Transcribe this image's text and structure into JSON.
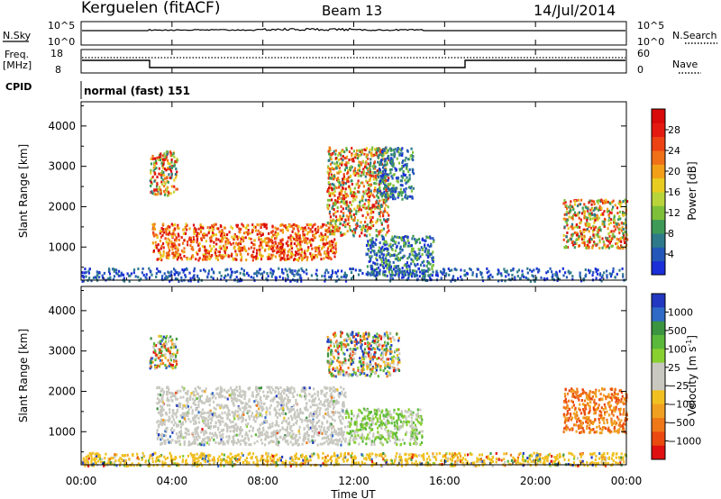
{
  "header": {
    "station": "Kerguelen (fitACF)",
    "beam": "Beam 13",
    "date": "14/Jul/2014"
  },
  "nsky_panel": {
    "left_label": "N.Sky",
    "left_ticks": [
      "10^5",
      "10^0"
    ],
    "right_ticks": [
      "10^5",
      "10^0"
    ],
    "right_label": "N.Search"
  },
  "freq_panel": {
    "left_label_1": "Freq.",
    "left_label_2": "[MHz]",
    "left_ticks": [
      "18",
      "8"
    ],
    "right_ticks": [
      "60",
      "0"
    ],
    "right_label": "Nave"
  },
  "cpid_panel": {
    "label": "CPID",
    "text": "normal (fast) 151"
  },
  "chart_data": [
    {
      "type": "heatmap",
      "name": "power",
      "ylabel": "Slant Range [km]",
      "x_range_hours": [
        0,
        24
      ],
      "ylim": [
        180,
        4600
      ],
      "y_ticks": [
        1000,
        2000,
        3000,
        4000
      ],
      "colorbar": {
        "label": "Power [dB]",
        "ticks": [
          "4",
          "8",
          "12",
          "16",
          "20",
          "24",
          "28"
        ],
        "colors": [
          "#1a2fd8",
          "#2458b8",
          "#2e7a8a",
          "#3e9a56",
          "#7ec03a",
          "#b8d43a",
          "#e8cc20",
          "#f2a018",
          "#f07018",
          "#ec4214",
          "#e41a10",
          "#d80a0a"
        ]
      },
      "regions": [
        {
          "t0": 3.1,
          "t1": 11.2,
          "r0": 700,
          "r1": 1600,
          "level": "high"
        },
        {
          "t0": 3.0,
          "t1": 4.2,
          "r0": 2300,
          "r1": 3400,
          "level": "mixed"
        },
        {
          "t0": 10.8,
          "t1": 13.5,
          "r0": 1300,
          "r1": 3500,
          "level": "mixed"
        },
        {
          "t0": 12.5,
          "t1": 15.5,
          "r0": 300,
          "r1": 1300,
          "level": "low"
        },
        {
          "t0": 13.0,
          "t1": 14.6,
          "r0": 2200,
          "r1": 3500,
          "level": "low"
        },
        {
          "t0": 21.2,
          "t1": 24.0,
          "r0": 1000,
          "r1": 2200,
          "level": "mixed"
        },
        {
          "t0": 0.0,
          "t1": 24.0,
          "r0": 180,
          "r1": 500,
          "level": "ground"
        }
      ]
    },
    {
      "type": "heatmap",
      "name": "velocity",
      "ylabel": "Slant Range [km]",
      "xlabel": "Time UT",
      "x_range_hours": [
        0,
        24
      ],
      "x_ticks": [
        "00:00",
        "04:00",
        "08:00",
        "12:00",
        "16:00",
        "20:00",
        "00:00"
      ],
      "ylim": [
        180,
        4600
      ],
      "y_ticks": [
        1000,
        2000,
        3000,
        4000
      ],
      "colorbar": {
        "label_1": "Velocity  [m s",
        "label_sup": "-1",
        "label_2": "]",
        "ticks": [
          "1000",
          "500",
          "100",
          "25",
          "−25",
          "−100",
          "−500",
          "−1000"
        ],
        "colors": [
          "#2238c0",
          "#2e6ac6",
          "#3a9440",
          "#5ab83a",
          "#88d030",
          "#c8c8c0",
          "#c8c8c0",
          "#f0c020",
          "#f0a020",
          "#ee7818",
          "#ea4a10",
          "#e01010"
        ]
      },
      "regions": [
        {
          "t0": 3.3,
          "t1": 11.6,
          "r0": 700,
          "r1": 2150,
          "level": "grey"
        },
        {
          "t0": 11.6,
          "t1": 15.0,
          "r0": 700,
          "r1": 1600,
          "level": "green"
        },
        {
          "t0": 21.2,
          "t1": 24.0,
          "r0": 1000,
          "r1": 2100,
          "level": "orange"
        },
        {
          "t0": 10.8,
          "t1": 14.0,
          "r0": 2400,
          "r1": 3500,
          "level": "mixed"
        },
        {
          "t0": 3.0,
          "t1": 4.2,
          "r0": 2600,
          "r1": 3400,
          "level": "mixed"
        },
        {
          "t0": 0.0,
          "t1": 24.0,
          "r0": 180,
          "r1": 500,
          "level": "yellow"
        }
      ]
    }
  ]
}
